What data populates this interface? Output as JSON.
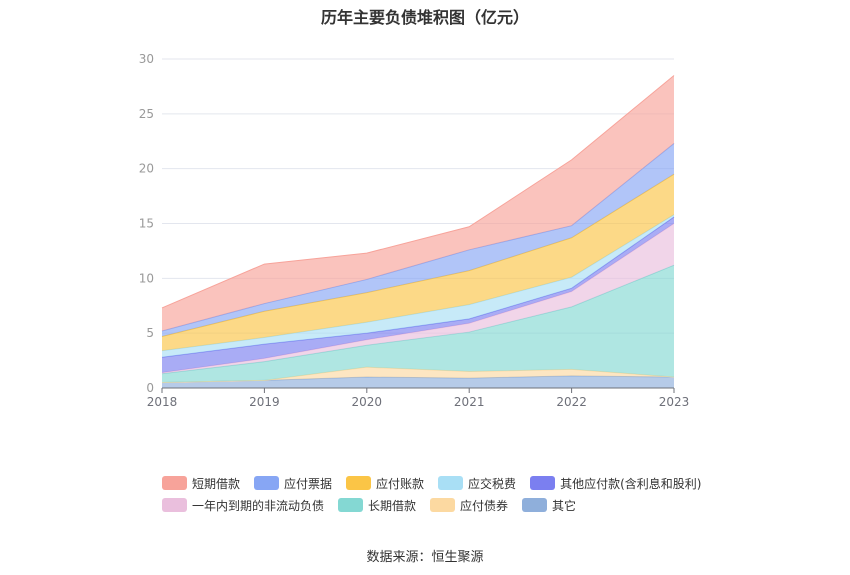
{
  "chart_data": {
    "type": "area",
    "title": "历年主要负债堆积图（亿元）",
    "source_label": "数据来源：恒生聚源",
    "categories": [
      "2018",
      "2019",
      "2020",
      "2021",
      "2022",
      "2023"
    ],
    "ylim": [
      0,
      30
    ],
    "yticks": [
      "0",
      "5",
      "10",
      "15",
      "20",
      "25",
      "30"
    ],
    "grid": true,
    "legend_position": "bottom",
    "stacked": true,
    "series": [
      {
        "name": "其它",
        "color": "#8fafdb",
        "values": [
          0.5,
          0.7,
          1.0,
          0.9,
          1.1,
          1.0
        ]
      },
      {
        "name": "应付债券",
        "color": "#fcd9a1",
        "values": [
          0.0,
          0.0,
          0.9,
          0.6,
          0.6,
          0.0
        ]
      },
      {
        "name": "长期借款",
        "color": "#84d8d3",
        "values": [
          0.8,
          1.7,
          2.0,
          3.6,
          5.7,
          10.2
        ]
      },
      {
        "name": "一年内到期的非流动负债",
        "color": "#eabfdd",
        "values": [
          0.1,
          0.3,
          0.5,
          0.8,
          1.4,
          3.8
        ]
      },
      {
        "name": "其他应付款(含利息和股利)",
        "color": "#7b7ff0",
        "values": [
          1.4,
          1.3,
          0.6,
          0.4,
          0.3,
          0.6
        ]
      },
      {
        "name": "应交税费",
        "color": "#a9dff5",
        "values": [
          0.6,
          0.6,
          1.0,
          1.3,
          1.0,
          0.2
        ]
      },
      {
        "name": "应付账款",
        "color": "#fbc546",
        "values": [
          1.3,
          2.4,
          2.7,
          3.1,
          3.6,
          3.7
        ]
      },
      {
        "name": "应付票据",
        "color": "#87a6f4",
        "values": [
          0.5,
          0.7,
          1.2,
          1.9,
          1.1,
          2.8
        ]
      },
      {
        "name": "短期借款",
        "color": "#f7a39a",
        "values": [
          2.1,
          3.6,
          2.4,
          2.1,
          6.0,
          6.2
        ]
      }
    ],
    "legend_rows": [
      [
        "短期借款",
        "应付票据",
        "应付账款",
        "应交税费",
        "其他应付款(含利息和股利)"
      ],
      [
        "一年内到期的非流动负债",
        "长期借款",
        "应付债券",
        "其它"
      ]
    ]
  }
}
